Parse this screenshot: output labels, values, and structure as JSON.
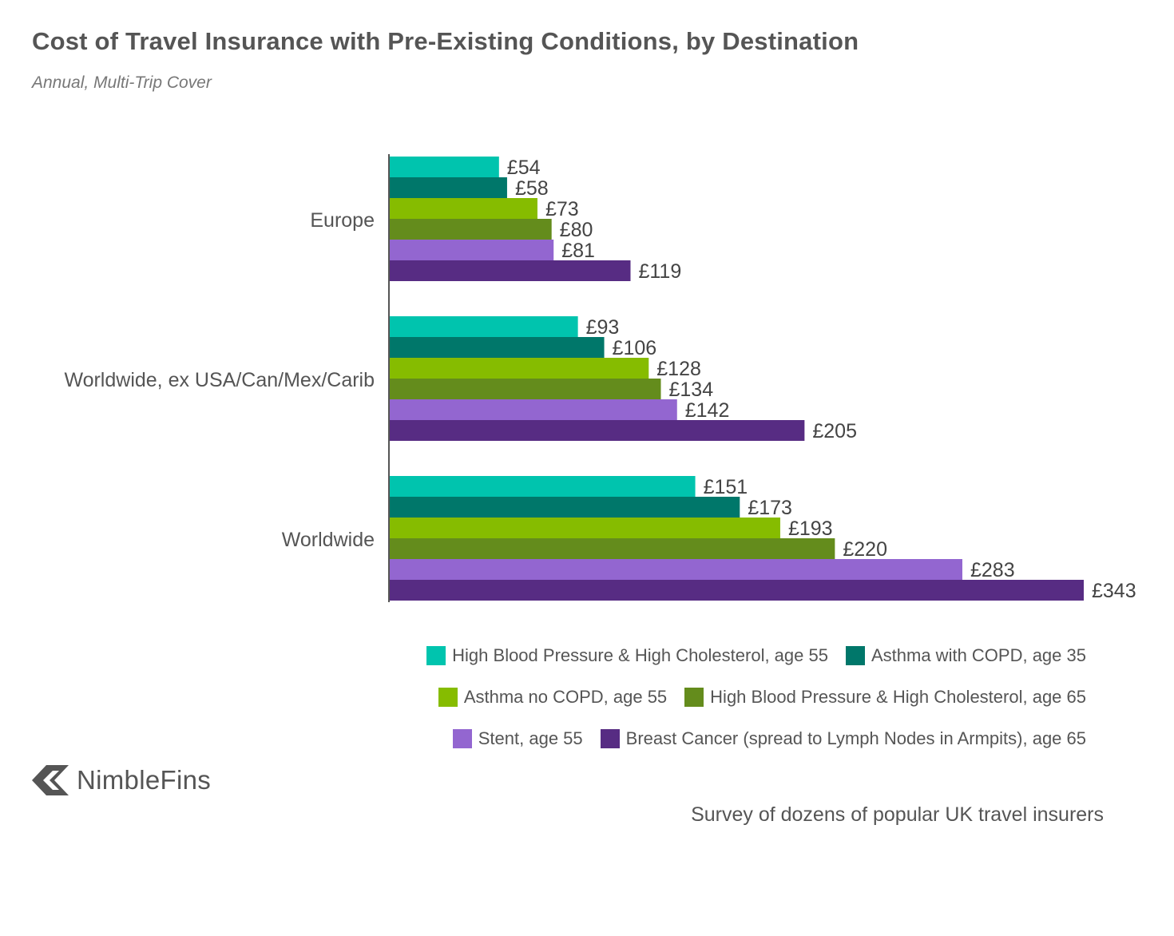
{
  "title": "Cost of Travel Insurance with Pre-Existing Conditions, by Destination",
  "subtitle": "Annual, Multi-Trip Cover",
  "source": "Survey of dozens of popular UK travel insurers",
  "brand": {
    "name": "NimbleFins",
    "icon": "nimblefins-chevron-icon"
  },
  "chart_data": {
    "type": "bar",
    "orientation": "horizontal",
    "categories": [
      "Europe",
      "Worldwide, ex USA/Can/Mex/Carib",
      "Worldwide"
    ],
    "series": [
      {
        "name": "High Blood Pressure & High Cholesterol, age 55",
        "color": "#00c4ae",
        "values": [
          54,
          93,
          151
        ]
      },
      {
        "name": "Asthma with COPD, age 35",
        "color": "#00776a",
        "values": [
          58,
          106,
          173
        ]
      },
      {
        "name": "Asthma no COPD, age 55",
        "color": "#86bc00",
        "values": [
          73,
          128,
          193
        ]
      },
      {
        "name": "High Blood Pressure & High Cholesterol, age 65",
        "color": "#648c1c",
        "values": [
          80,
          134,
          220
        ]
      },
      {
        "name": "Stent, age 55",
        "color": "#9366d0",
        "values": [
          81,
          142,
          283
        ]
      },
      {
        "name": "Breast Cancer (spread to Lymph Nodes in Armpits), age 65",
        "color": "#572c83",
        "values": [
          119,
          205,
          343
        ]
      }
    ],
    "value_prefix": "£",
    "xlim": [
      0,
      343
    ],
    "grid": false,
    "legend": "bottom",
    "xlabel": "",
    "ylabel": ""
  }
}
